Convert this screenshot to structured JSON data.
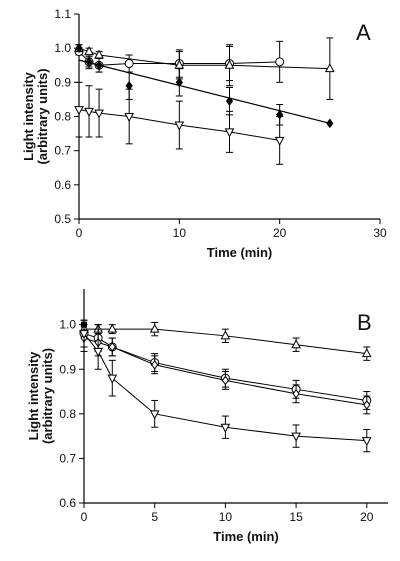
{
  "chart_data": [
    {
      "type": "line",
      "panel_label": "A",
      "xlabel": "Time (min)",
      "ylabel_line1": "Light intensity",
      "ylabel_line2": "(arbitrary units)",
      "xlim": [
        0,
        30
      ],
      "ylim": [
        0.5,
        1.1
      ],
      "xticks": [
        0,
        10,
        20,
        30
      ],
      "yticks": [
        0.5,
        0.6,
        0.7,
        0.8,
        0.9,
        1.0,
        1.1
      ],
      "series": [
        {
          "marker": "circle-open",
          "x": [
            0,
            1,
            2,
            5,
            10,
            15,
            20
          ],
          "y": [
            0.99,
            0.96,
            0.95,
            0.955,
            0.955,
            0.955,
            0.96
          ],
          "err": [
            0.01,
            0.02,
            0.02,
            0.025,
            0.04,
            0.05,
            0.06
          ],
          "fit": "connect"
        },
        {
          "marker": "triangle-up-open",
          "x": [
            0,
            1,
            2,
            10,
            15,
            25
          ],
          "y": [
            1.0,
            0.99,
            0.98,
            0.95,
            0.95,
            0.94
          ],
          "err": [
            0.01,
            0.01,
            0.01,
            0.04,
            0.06,
            0.09
          ],
          "fit": "connect"
        },
        {
          "marker": "diamond-filled",
          "x": [
            0,
            1,
            2,
            5,
            10,
            15,
            20,
            25
          ],
          "y": [
            1.0,
            0.96,
            0.95,
            0.89,
            0.9,
            0.845,
            0.805,
            0.78
          ],
          "err": [
            0.01,
            0.015,
            0.02,
            0.04,
            0.04,
            0.04,
            0.03,
            0.0
          ],
          "fit": "linear",
          "fit_line": [
            [
              0,
              0.965
            ],
            [
              25,
              0.78
            ]
          ]
        },
        {
          "marker": "triangle-down-open",
          "x": [
            0,
            1,
            2,
            5,
            10,
            15,
            20
          ],
          "y": [
            0.82,
            0.815,
            0.81,
            0.8,
            0.775,
            0.755,
            0.73
          ],
          "err": [
            0.08,
            0.075,
            0.07,
            0.08,
            0.07,
            0.06,
            0.07
          ],
          "fit": "connect"
        }
      ]
    },
    {
      "type": "line",
      "panel_label": "B",
      "xlabel": "Time (min)",
      "ylabel_line1": "Light intensity",
      "ylabel_line2": "(arbitrary units)",
      "xlim": [
        0,
        21.5
      ],
      "ylim": [
        0.6,
        1.08
      ],
      "xticks": [
        0,
        5,
        10,
        15,
        20
      ],
      "yticks": [
        0.6,
        0.7,
        0.8,
        0.9,
        1.0
      ],
      "series": [
        {
          "marker": "triangle-up-open",
          "x": [
            0,
            1,
            2,
            5,
            10,
            15,
            20
          ],
          "y": [
            0.99,
            0.99,
            0.99,
            0.99,
            0.975,
            0.955,
            0.935
          ],
          "err": [
            0.01,
            0.01,
            0.01,
            0.015,
            0.015,
            0.015,
            0.015
          ],
          "fit": "connect"
        },
        {
          "marker": "circle-open",
          "x": [
            0,
            1,
            2,
            5,
            10,
            15,
            20
          ],
          "y": [
            0.98,
            0.97,
            0.95,
            0.915,
            0.88,
            0.855,
            0.83
          ],
          "err": [
            0.03,
            0.03,
            0.02,
            0.02,
            0.02,
            0.02,
            0.02
          ],
          "fit": "connect"
        },
        {
          "marker": "diamond-open",
          "x": [
            0,
            1,
            2,
            5,
            10,
            15,
            20
          ],
          "y": [
            0.97,
            0.96,
            0.95,
            0.91,
            0.875,
            0.845,
            0.82
          ],
          "err": [
            0.03,
            0.03,
            0.02,
            0.02,
            0.02,
            0.02,
            0.02
          ],
          "fit": "connect"
        },
        {
          "marker": "triangle-down-open",
          "x": [
            0,
            1,
            2,
            5,
            10,
            15,
            20
          ],
          "y": [
            0.98,
            0.94,
            0.88,
            0.8,
            0.77,
            0.75,
            0.74
          ],
          "err": [
            0.03,
            0.04,
            0.04,
            0.03,
            0.025,
            0.025,
            0.025
          ],
          "fit": "connect"
        },
        {
          "marker": "square-filled",
          "x": [
            0
          ],
          "y": [
            1.0
          ],
          "err": [
            0.0
          ],
          "fit": "none"
        }
      ]
    }
  ]
}
